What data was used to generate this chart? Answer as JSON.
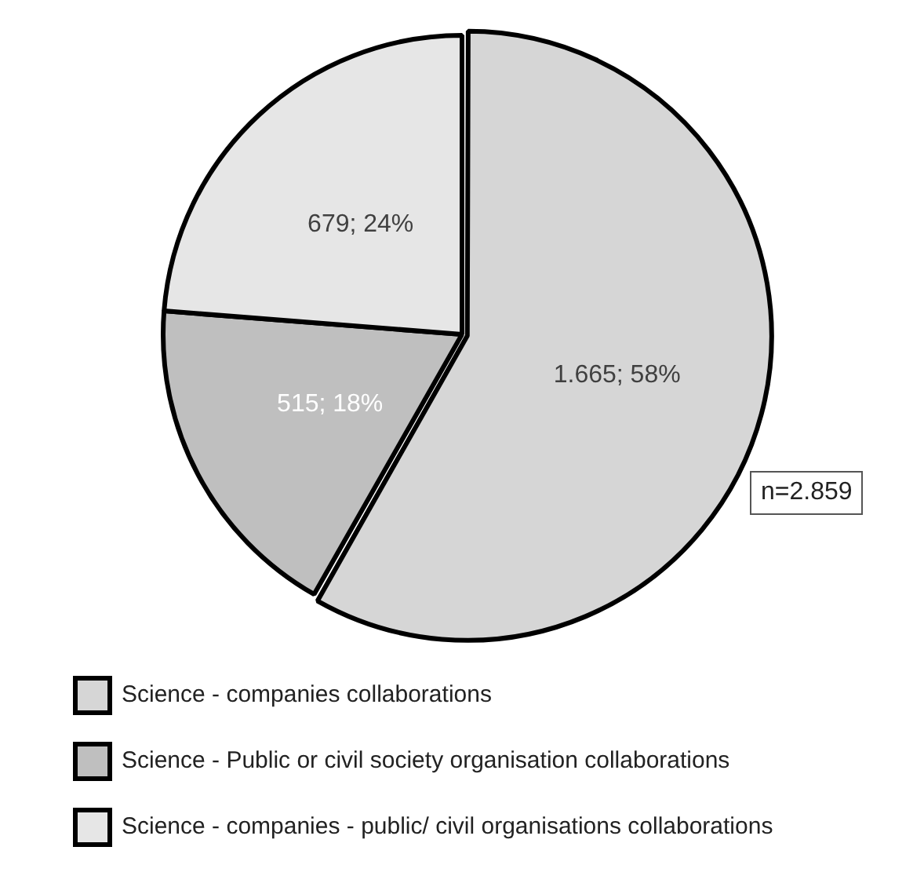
{
  "chart_data": {
    "type": "pie",
    "categories": [
      "Science - companies collaborations",
      "Science - Public or civil society organisation collaborations",
      "Science - companies - public/ civil organisations collaborations"
    ],
    "values": [
      1665,
      515,
      679
    ],
    "colors": [
      "#d6d6d6",
      "#bfbfbf",
      "#e6e6e6"
    ],
    "value_labels": [
      "1.665; 58%",
      "515; 18%",
      "679; 24%"
    ],
    "annotations": [
      "n=2.859"
    ],
    "legend": "bottom"
  }
}
